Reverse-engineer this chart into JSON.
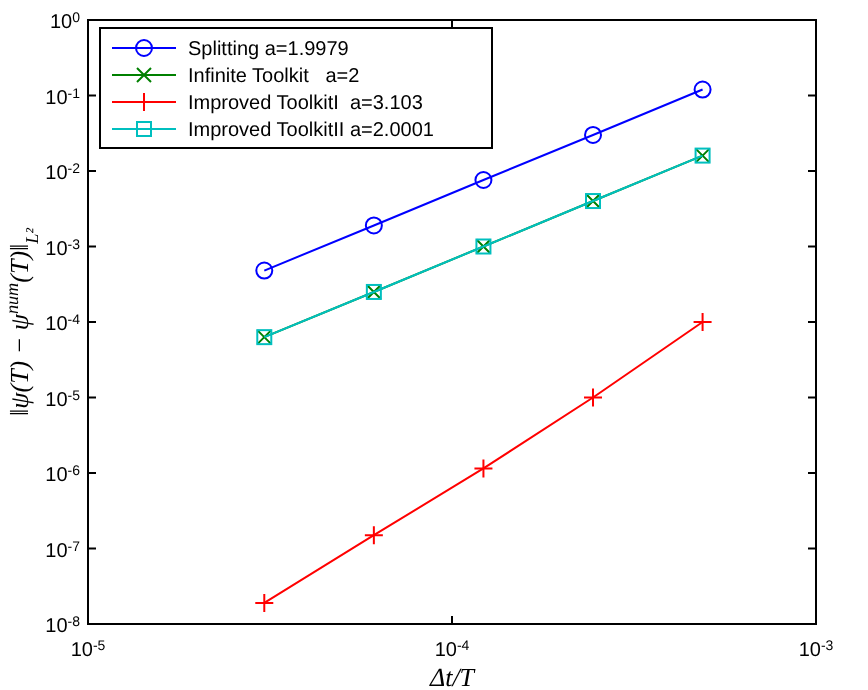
{
  "chart_data": {
    "type": "line",
    "xlabel": "Δt/T",
    "ylabel": "‖ψ(T) − ψ$^{num}$(T)‖$_{L²}$",
    "log": "xy",
    "x": [
      3.05e-05,
      6.1e-05,
      0.000122,
      0.000244,
      0.000488
    ],
    "xlim": [
      1e-05,
      0.001
    ],
    "xticks": [
      {
        "value": 1e-05,
        "label": "10$^{-5}$"
      },
      {
        "value": 0.0001,
        "label": "10$^{-4}$"
      },
      {
        "value": 0.001,
        "label": "10$^{-3}$"
      }
    ],
    "ylim": [
      1e-08,
      1
    ],
    "yticks": [
      {
        "value": 1e-08,
        "label": "10$^{-8}$"
      },
      {
        "value": 1e-07,
        "label": "10$^{-7}$"
      },
      {
        "value": 1e-06,
        "label": "10$^{-6}$"
      },
      {
        "value": 1e-05,
        "label": "10$^{-5}$"
      },
      {
        "value": 0.0001,
        "label": "10$^{-4}$"
      },
      {
        "value": 0.001,
        "label": "10$^{-3}$"
      },
      {
        "value": 0.01,
        "label": "10$^{-2}$"
      },
      {
        "value": 0.1,
        "label": "10$^{-1}$"
      },
      {
        "value": 1,
        "label": "10$^{0}$"
      }
    ],
    "legend": "top left",
    "grid": false,
    "line_style": "solid",
    "series": [
      {
        "name": "Splitting a=1.9979",
        "color": "#0000ff",
        "marker": "circle",
        "values": [
          0.00048,
          0.0019,
          0.0076,
          0.03,
          0.12
        ]
      },
      {
        "name": "Infinite Toolkit   a=2",
        "color": "#008000",
        "marker": "x",
        "values": [
          6.3e-05,
          0.00025,
          0.001,
          0.004,
          0.016
        ]
      },
      {
        "name": "Improved ToolkitI  a=3.103",
        "color": "#ff0000",
        "marker": "cross",
        "values": [
          1.9e-08,
          1.5e-07,
          1.15e-06,
          1e-05,
          0.0001
        ]
      },
      {
        "name": "Improved ToolkitII a=2.0001",
        "color": "#00bfbf",
        "marker": "square",
        "values": [
          6.3e-05,
          0.00025,
          0.001,
          0.004,
          0.016
        ]
      }
    ]
  }
}
